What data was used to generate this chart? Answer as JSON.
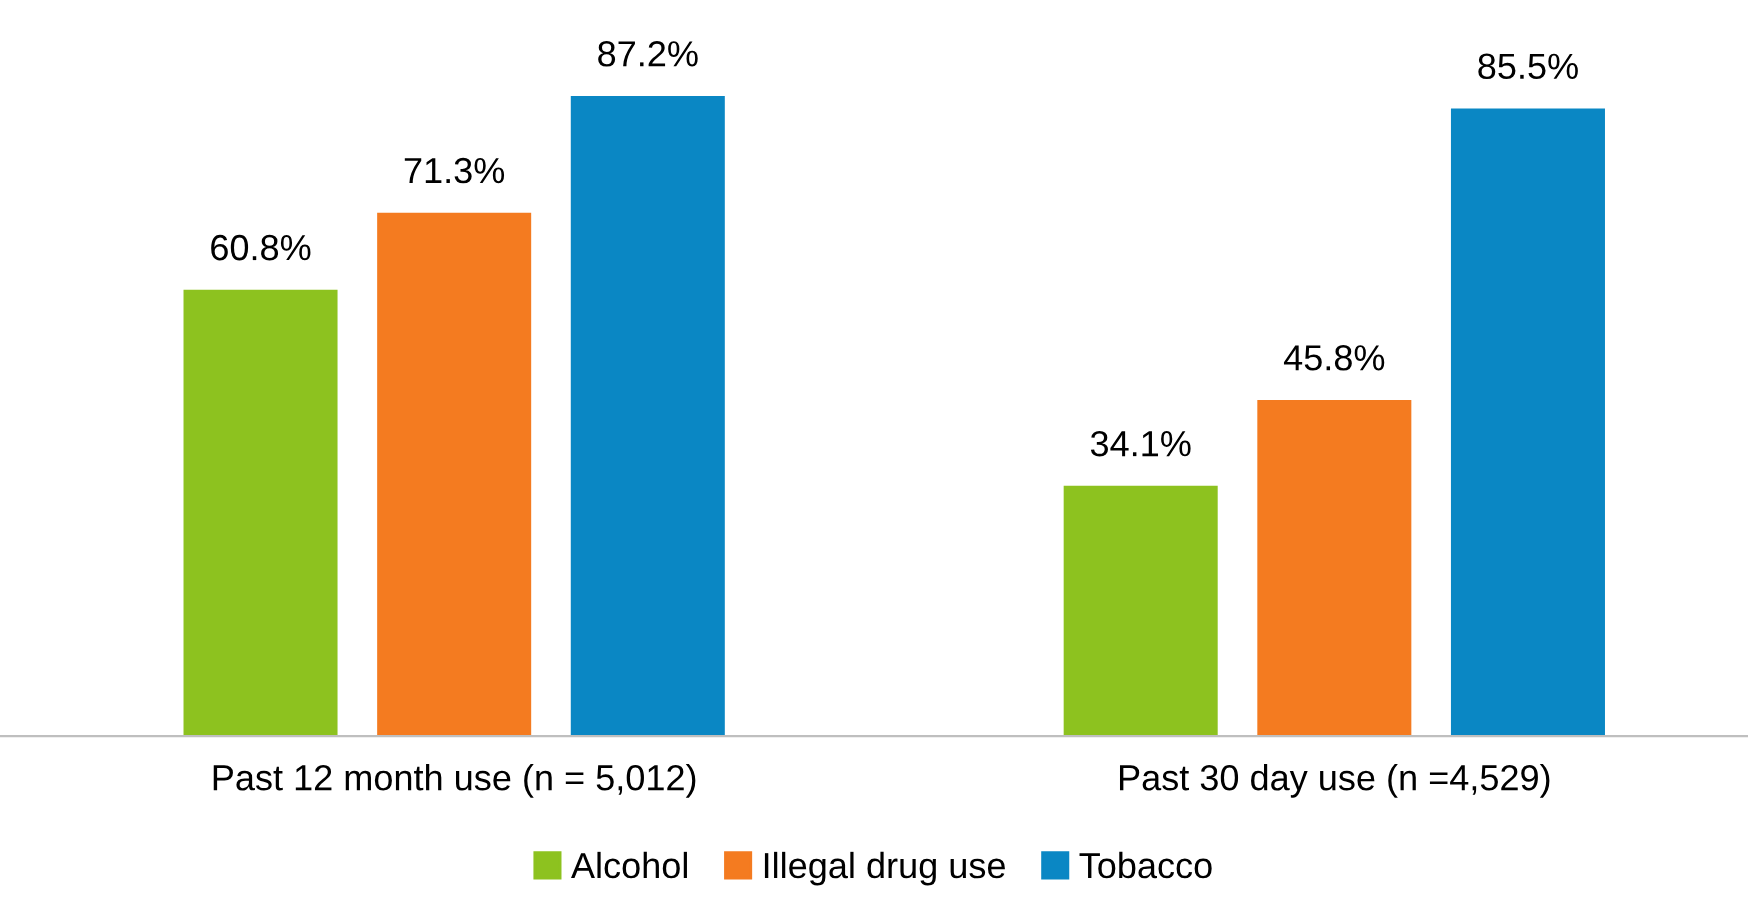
{
  "chart_data": {
    "type": "bar",
    "categories": [
      "Past 12 month use (n = 5,012)",
      "Past 30 day use (n =4,529)"
    ],
    "series": [
      {
        "name": "Alcohol",
        "color": "#8dc21f",
        "values": [
          60.8,
          34.1
        ],
        "value_labels": [
          "60.8%",
          "34.1%"
        ]
      },
      {
        "name": "Illegal drug use",
        "color": "#f47b20",
        "values": [
          71.3,
          45.8
        ],
        "value_labels": [
          "71.3%",
          "45.8%"
        ]
      },
      {
        "name": "Tobacco",
        "color": "#0a87c4",
        "values": [
          87.2,
          85.5
        ],
        "value_labels": [
          "87.2%",
          "85.5%"
        ]
      }
    ],
    "legend": "bottom",
    "grid": false,
    "tick_labels": "x"
  }
}
